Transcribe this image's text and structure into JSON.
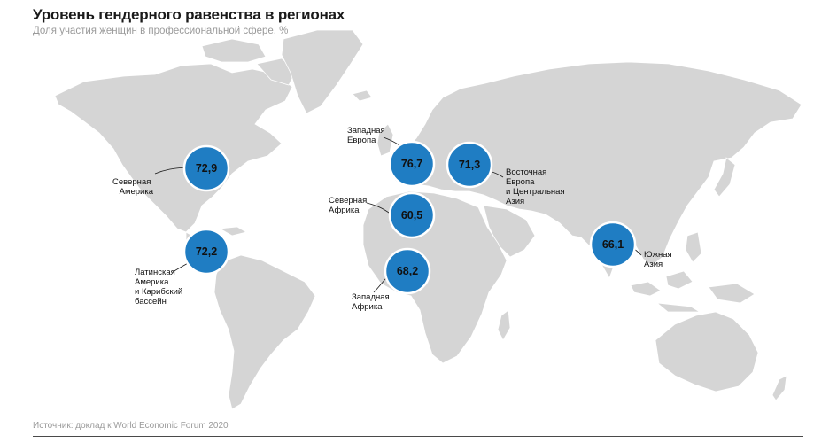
{
  "header": {
    "title": "Уровень гендерного равенства в регионах",
    "subtitle": "Доля участия женщин в профессиональной сфере, %"
  },
  "footer": {
    "source": "Источник: доклад к World Economic Forum 2020"
  },
  "colors": {
    "marker": "#1f7dc3",
    "land": "#d5d5d5",
    "background": "#ffffff"
  },
  "regions": [
    {
      "id": "north-america",
      "value": "72,9",
      "label": [
        "Северная",
        "Америка"
      ]
    },
    {
      "id": "latin-america",
      "value": "72,2",
      "label": [
        "Латинская",
        "Америка",
        "и Карибский",
        "бассейн"
      ]
    },
    {
      "id": "western-europe",
      "value": "76,7",
      "label": [
        "Западная",
        "Европа"
      ]
    },
    {
      "id": "eastern-europe-central-asia",
      "value": "71,3",
      "label": [
        "Восточная",
        "Европа",
        "и Центральная",
        "Азия"
      ]
    },
    {
      "id": "north-africa",
      "value": "60,5",
      "label": [
        "Северная",
        "Африка"
      ]
    },
    {
      "id": "west-africa",
      "value": "68,2",
      "label": [
        "Западная",
        "Африка"
      ]
    },
    {
      "id": "south-asia",
      "value": "66,1",
      "label": [
        "Южная",
        "Азия"
      ]
    }
  ]
}
